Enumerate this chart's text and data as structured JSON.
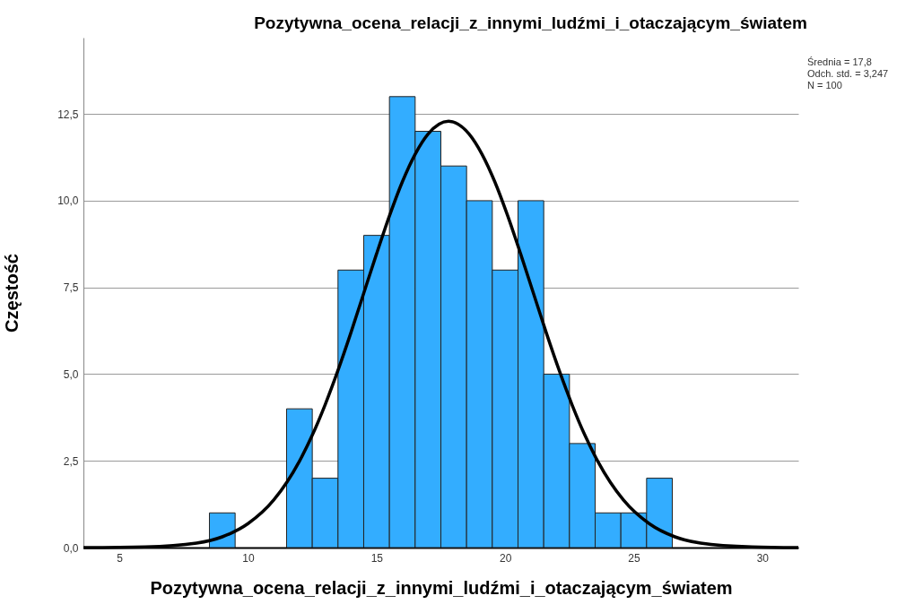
{
  "chart_data": {
    "type": "histogram",
    "title": "Pozytywna_ocena_relacji_z_innymi_ludźmi_i_otaczającym_światem",
    "xlabel": "Pozytywna_ocena_relacji_z_innymi_ludźmi_i_otaczającym_światem",
    "ylabel": "Częstość",
    "bins": [
      8.5,
      9.5,
      10.5,
      11.5,
      12.5,
      13.5,
      14.5,
      15.5,
      16.5,
      17.5,
      18.5,
      19.5,
      20.5,
      21.5,
      22.5,
      23.5,
      24.5,
      25.5,
      26.5
    ],
    "values": [
      1,
      0,
      0,
      4,
      2,
      8,
      9,
      13,
      12,
      11,
      10,
      8,
      10,
      5,
      3,
      1,
      1,
      2
    ],
    "color": "#33adff",
    "series": [
      {
        "type": "line",
        "color": "#000000",
        "x": [
          3.6,
          6,
          8,
          9,
          10,
          11,
          12,
          12.5,
          13,
          13.5,
          14,
          14.5,
          15,
          15.5,
          16,
          16.5,
          17,
          17.8,
          18.6,
          19.1,
          19.6,
          20.1,
          20.6,
          21.1,
          21.6,
          22.1,
          22.6,
          23.1,
          23.6,
          24.6,
          25.6,
          26.6,
          27.6,
          29.6,
          31.4
        ],
        "values": [
          0.0,
          0.02,
          0.13,
          0.31,
          0.69,
          1.37,
          2.49,
          3.24,
          4.12,
          5.11,
          6.19,
          7.33,
          8.47,
          9.56,
          10.54,
          11.34,
          11.92,
          12.29,
          11.92,
          11.34,
          10.54,
          9.56,
          8.47,
          7.33,
          6.19,
          5.11,
          4.12,
          3.24,
          2.49,
          1.37,
          0.69,
          0.31,
          0.13,
          0.02,
          0.0
        ]
      }
    ],
    "xlim": [
      3.6,
      31.4
    ],
    "xticks": [
      5,
      10,
      15,
      20,
      25,
      30
    ],
    "ylim": [
      0,
      14.7
    ],
    "yticks": [
      {
        "value": 0,
        "label": "0,0"
      },
      {
        "value": 2.5,
        "label": "2,5"
      },
      {
        "value": 5,
        "label": "5,0"
      },
      {
        "value": 7.5,
        "label": "7,5"
      },
      {
        "value": 10,
        "label": "10,0"
      },
      {
        "value": 12.5,
        "label": "12,5"
      }
    ],
    "grid": "y",
    "annotations": [
      "Średnia =  17,8",
      "Odch. std. =  3,247",
      "N = 100"
    ]
  }
}
